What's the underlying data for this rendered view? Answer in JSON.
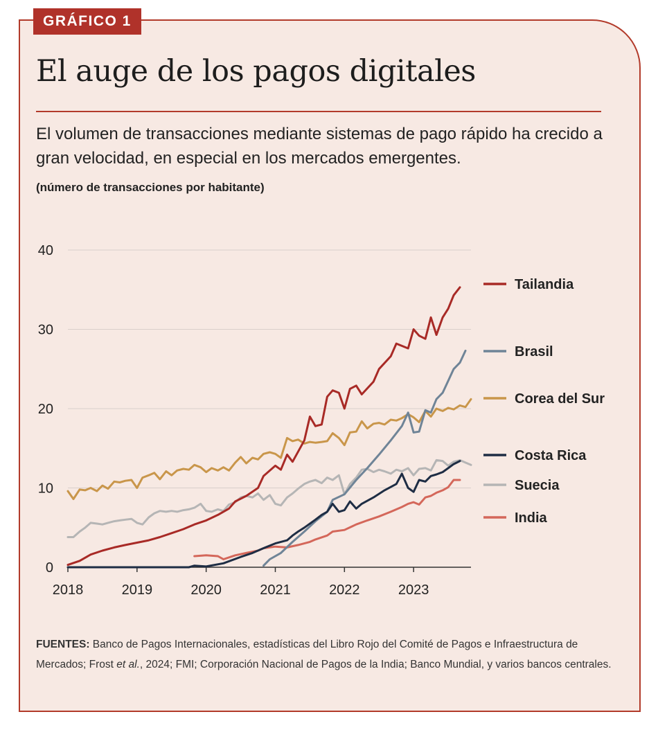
{
  "badge": "GRÁFICO 1",
  "title": "El auge de los pagos digitales",
  "subtitle": "El volumen de transacciones mediante sistemas de pago rápido ha crecido a gran velocidad, en especial en los mercados emergentes.",
  "unit_note": "(número de transacciones por habitante)",
  "source": {
    "label": "FUENTES:",
    "text_part1": " Banco de Pagos Internacionales, estadísticas del Libro Rojo del Comité de Pagos e Infraestructura de Mercados; Frost ",
    "text_italic": "et al.",
    "text_part2": ", 2024; FMI; Corporación Nacional de Pagos de la India; Banco Mundial,  y varios bancos centrales."
  },
  "chart_data": {
    "type": "line",
    "ylim": [
      0,
      40
    ],
    "xlim": [
      2018,
      2023.83
    ],
    "yticks": [
      0,
      10,
      20,
      30,
      40
    ],
    "xticks": [
      "2018",
      "2019",
      "2020",
      "2021",
      "2022",
      "2023"
    ],
    "grid": "horizontal",
    "legend": "right",
    "series": [
      {
        "name": "Tailandia",
        "color": "#a82a26",
        "points": [
          [
            2018.0,
            0.3
          ],
          [
            2018.17,
            0.8
          ],
          [
            2018.33,
            1.6
          ],
          [
            2018.5,
            2.1
          ],
          [
            2018.67,
            2.5
          ],
          [
            2018.83,
            2.8
          ],
          [
            2019.0,
            3.1
          ],
          [
            2019.17,
            3.4
          ],
          [
            2019.33,
            3.8
          ],
          [
            2019.5,
            4.3
          ],
          [
            2019.67,
            4.8
          ],
          [
            2019.83,
            5.4
          ],
          [
            2020.0,
            5.9
          ],
          [
            2020.17,
            6.6
          ],
          [
            2020.33,
            7.4
          ],
          [
            2020.42,
            8.3
          ],
          [
            2020.58,
            9.0
          ],
          [
            2020.75,
            10.0
          ],
          [
            2020.83,
            11.5
          ],
          [
            2021.0,
            12.8
          ],
          [
            2021.08,
            12.3
          ],
          [
            2021.17,
            14.2
          ],
          [
            2021.25,
            13.3
          ],
          [
            2021.42,
            16.0
          ],
          [
            2021.5,
            19.0
          ],
          [
            2021.58,
            17.8
          ],
          [
            2021.67,
            18.0
          ],
          [
            2021.75,
            21.5
          ],
          [
            2021.83,
            22.3
          ],
          [
            2021.92,
            22.0
          ],
          [
            2022.0,
            20.0
          ],
          [
            2022.08,
            22.5
          ],
          [
            2022.17,
            22.9
          ],
          [
            2022.25,
            21.8
          ],
          [
            2022.42,
            23.4
          ],
          [
            2022.5,
            25.0
          ],
          [
            2022.67,
            26.6
          ],
          [
            2022.75,
            28.2
          ],
          [
            2022.92,
            27.6
          ],
          [
            2023.0,
            30.0
          ],
          [
            2023.08,
            29.2
          ],
          [
            2023.17,
            28.8
          ],
          [
            2023.25,
            31.5
          ],
          [
            2023.33,
            29.3
          ],
          [
            2023.42,
            31.5
          ],
          [
            2023.5,
            32.6
          ],
          [
            2023.58,
            34.3
          ],
          [
            2023.67,
            35.3
          ]
        ]
      },
      {
        "name": "Brasil",
        "color": "#6f8497",
        "points": [
          [
            2020.83,
            0.2
          ],
          [
            2020.92,
            1.0
          ],
          [
            2021.08,
            1.8
          ],
          [
            2021.25,
            3.2
          ],
          [
            2021.42,
            4.5
          ],
          [
            2021.58,
            5.8
          ],
          [
            2021.75,
            7.0
          ],
          [
            2021.83,
            8.5
          ],
          [
            2022.0,
            9.2
          ],
          [
            2022.17,
            11.0
          ],
          [
            2022.33,
            12.5
          ],
          [
            2022.5,
            14.2
          ],
          [
            2022.67,
            16.0
          ],
          [
            2022.83,
            17.8
          ],
          [
            2022.92,
            19.5
          ],
          [
            2023.0,
            17.0
          ],
          [
            2023.08,
            17.1
          ],
          [
            2023.17,
            19.8
          ],
          [
            2023.25,
            19.5
          ],
          [
            2023.33,
            21.2
          ],
          [
            2023.42,
            22.0
          ],
          [
            2023.5,
            23.5
          ],
          [
            2023.58,
            25.0
          ],
          [
            2023.67,
            25.8
          ],
          [
            2023.75,
            27.3
          ]
        ]
      },
      {
        "name": "Corea del Sur",
        "color": "#c9964a",
        "points": [
          [
            2018.0,
            9.6
          ],
          [
            2018.08,
            8.6
          ],
          [
            2018.17,
            9.8
          ],
          [
            2018.25,
            9.7
          ],
          [
            2018.33,
            10.0
          ],
          [
            2018.42,
            9.6
          ],
          [
            2018.5,
            10.3
          ],
          [
            2018.58,
            9.9
          ],
          [
            2018.67,
            10.8
          ],
          [
            2018.75,
            10.7
          ],
          [
            2018.83,
            10.9
          ],
          [
            2018.92,
            11.0
          ],
          [
            2019.0,
            10.0
          ],
          [
            2019.08,
            11.3
          ],
          [
            2019.17,
            11.6
          ],
          [
            2019.25,
            11.9
          ],
          [
            2019.33,
            11.1
          ],
          [
            2019.42,
            12.1
          ],
          [
            2019.5,
            11.6
          ],
          [
            2019.58,
            12.2
          ],
          [
            2019.67,
            12.4
          ],
          [
            2019.75,
            12.3
          ],
          [
            2019.83,
            12.9
          ],
          [
            2019.92,
            12.6
          ],
          [
            2020.0,
            12.0
          ],
          [
            2020.08,
            12.5
          ],
          [
            2020.17,
            12.2
          ],
          [
            2020.25,
            12.6
          ],
          [
            2020.33,
            12.2
          ],
          [
            2020.42,
            13.2
          ],
          [
            2020.5,
            13.9
          ],
          [
            2020.58,
            13.1
          ],
          [
            2020.67,
            13.8
          ],
          [
            2020.75,
            13.6
          ],
          [
            2020.83,
            14.3
          ],
          [
            2020.92,
            14.5
          ],
          [
            2021.0,
            14.3
          ],
          [
            2021.08,
            13.8
          ],
          [
            2021.17,
            16.3
          ],
          [
            2021.25,
            15.9
          ],
          [
            2021.33,
            16.1
          ],
          [
            2021.42,
            15.6
          ],
          [
            2021.5,
            15.8
          ],
          [
            2021.58,
            15.7
          ],
          [
            2021.67,
            15.8
          ],
          [
            2021.75,
            15.9
          ],
          [
            2021.83,
            16.9
          ],
          [
            2021.92,
            16.3
          ],
          [
            2022.0,
            15.4
          ],
          [
            2022.08,
            17.0
          ],
          [
            2022.17,
            17.1
          ],
          [
            2022.25,
            18.4
          ],
          [
            2022.33,
            17.5
          ],
          [
            2022.42,
            18.1
          ],
          [
            2022.5,
            18.2
          ],
          [
            2022.58,
            18.0
          ],
          [
            2022.67,
            18.6
          ],
          [
            2022.75,
            18.5
          ],
          [
            2022.83,
            18.8
          ],
          [
            2022.92,
            19.3
          ],
          [
            2023.0,
            18.9
          ],
          [
            2023.08,
            18.3
          ],
          [
            2023.17,
            19.7
          ],
          [
            2023.25,
            19.0
          ],
          [
            2023.33,
            20.0
          ],
          [
            2023.42,
            19.7
          ],
          [
            2023.5,
            20.1
          ],
          [
            2023.58,
            19.9
          ],
          [
            2023.67,
            20.4
          ],
          [
            2023.75,
            20.2
          ],
          [
            2023.83,
            21.2
          ]
        ]
      },
      {
        "name": "Costa Rica",
        "color": "#1e2d44",
        "points": [
          [
            2018.0,
            0.0
          ],
          [
            2019.75,
            0.0
          ],
          [
            2019.83,
            0.2
          ],
          [
            2020.0,
            0.1
          ],
          [
            2020.25,
            0.5
          ],
          [
            2020.5,
            1.3
          ],
          [
            2020.67,
            1.8
          ],
          [
            2020.83,
            2.4
          ],
          [
            2021.0,
            3.0
          ],
          [
            2021.17,
            3.4
          ],
          [
            2021.25,
            4.0
          ],
          [
            2021.33,
            4.5
          ],
          [
            2021.42,
            5.0
          ],
          [
            2021.58,
            6.0
          ],
          [
            2021.67,
            6.6
          ],
          [
            2021.75,
            7.0
          ],
          [
            2021.83,
            8.0
          ],
          [
            2021.92,
            7.0
          ],
          [
            2022.0,
            7.2
          ],
          [
            2022.08,
            8.3
          ],
          [
            2022.17,
            7.4
          ],
          [
            2022.25,
            8.0
          ],
          [
            2022.42,
            8.8
          ],
          [
            2022.58,
            9.7
          ],
          [
            2022.75,
            10.5
          ],
          [
            2022.83,
            11.8
          ],
          [
            2022.92,
            10.0
          ],
          [
            2023.0,
            9.5
          ],
          [
            2023.08,
            11.0
          ],
          [
            2023.17,
            10.8
          ],
          [
            2023.25,
            11.5
          ],
          [
            2023.33,
            11.7
          ],
          [
            2023.42,
            12.0
          ],
          [
            2023.5,
            12.5
          ],
          [
            2023.58,
            13.0
          ],
          [
            2023.67,
            13.4
          ]
        ]
      },
      {
        "name": "Suecia",
        "color": "#b5b5b5",
        "points": [
          [
            2018.0,
            3.8
          ],
          [
            2018.08,
            3.8
          ],
          [
            2018.17,
            4.5
          ],
          [
            2018.25,
            5.0
          ],
          [
            2018.33,
            5.6
          ],
          [
            2018.42,
            5.5
          ],
          [
            2018.5,
            5.4
          ],
          [
            2018.58,
            5.6
          ],
          [
            2018.67,
            5.8
          ],
          [
            2018.75,
            5.9
          ],
          [
            2018.83,
            6.0
          ],
          [
            2018.92,
            6.1
          ],
          [
            2019.0,
            5.6
          ],
          [
            2019.08,
            5.4
          ],
          [
            2019.17,
            6.3
          ],
          [
            2019.25,
            6.8
          ],
          [
            2019.33,
            7.1
          ],
          [
            2019.42,
            7.0
          ],
          [
            2019.5,
            7.1
          ],
          [
            2019.58,
            7.0
          ],
          [
            2019.67,
            7.2
          ],
          [
            2019.75,
            7.3
          ],
          [
            2019.83,
            7.5
          ],
          [
            2019.92,
            8.0
          ],
          [
            2020.0,
            7.1
          ],
          [
            2020.08,
            7.0
          ],
          [
            2020.17,
            7.3
          ],
          [
            2020.25,
            7.1
          ],
          [
            2020.33,
            7.9
          ],
          [
            2020.42,
            8.2
          ],
          [
            2020.5,
            8.8
          ],
          [
            2020.58,
            9.0
          ],
          [
            2020.67,
            8.8
          ],
          [
            2020.75,
            9.3
          ],
          [
            2020.83,
            8.5
          ],
          [
            2020.92,
            9.1
          ],
          [
            2021.0,
            8.0
          ],
          [
            2021.08,
            7.8
          ],
          [
            2021.17,
            8.8
          ],
          [
            2021.25,
            9.3
          ],
          [
            2021.33,
            9.9
          ],
          [
            2021.42,
            10.5
          ],
          [
            2021.5,
            10.8
          ],
          [
            2021.58,
            11.0
          ],
          [
            2021.67,
            10.6
          ],
          [
            2021.75,
            11.3
          ],
          [
            2021.83,
            11.0
          ],
          [
            2021.92,
            11.6
          ],
          [
            2022.0,
            9.2
          ],
          [
            2022.08,
            10.5
          ],
          [
            2022.17,
            11.3
          ],
          [
            2022.25,
            12.3
          ],
          [
            2022.33,
            12.4
          ],
          [
            2022.42,
            12.0
          ],
          [
            2022.5,
            12.3
          ],
          [
            2022.58,
            12.1
          ],
          [
            2022.67,
            11.8
          ],
          [
            2022.75,
            12.3
          ],
          [
            2022.83,
            12.1
          ],
          [
            2022.92,
            12.5
          ],
          [
            2023.0,
            11.6
          ],
          [
            2023.08,
            12.4
          ],
          [
            2023.17,
            12.5
          ],
          [
            2023.25,
            12.2
          ],
          [
            2023.33,
            13.5
          ],
          [
            2023.42,
            13.4
          ],
          [
            2023.5,
            12.8
          ],
          [
            2023.58,
            13.3
          ],
          [
            2023.67,
            13.5
          ],
          [
            2023.75,
            13.2
          ],
          [
            2023.83,
            12.9
          ]
        ]
      },
      {
        "name": "India",
        "color": "#d4675a",
        "points": [
          [
            2019.83,
            1.4
          ],
          [
            2020.0,
            1.5
          ],
          [
            2020.17,
            1.4
          ],
          [
            2020.25,
            1.0
          ],
          [
            2020.42,
            1.5
          ],
          [
            2020.58,
            1.8
          ],
          [
            2020.75,
            2.1
          ],
          [
            2020.83,
            2.4
          ],
          [
            2021.0,
            2.6
          ],
          [
            2021.17,
            2.5
          ],
          [
            2021.33,
            2.8
          ],
          [
            2021.5,
            3.2
          ],
          [
            2021.58,
            3.5
          ],
          [
            2021.75,
            4.0
          ],
          [
            2021.83,
            4.5
          ],
          [
            2022.0,
            4.7
          ],
          [
            2022.17,
            5.4
          ],
          [
            2022.33,
            5.9
          ],
          [
            2022.5,
            6.4
          ],
          [
            2022.67,
            7.0
          ],
          [
            2022.83,
            7.6
          ],
          [
            2022.92,
            8.0
          ],
          [
            2023.0,
            8.2
          ],
          [
            2023.08,
            7.9
          ],
          [
            2023.17,
            8.8
          ],
          [
            2023.25,
            9.0
          ],
          [
            2023.33,
            9.4
          ],
          [
            2023.42,
            9.7
          ],
          [
            2023.5,
            10.1
          ],
          [
            2023.58,
            11.0
          ],
          [
            2023.67,
            11.0
          ]
        ]
      }
    ]
  }
}
